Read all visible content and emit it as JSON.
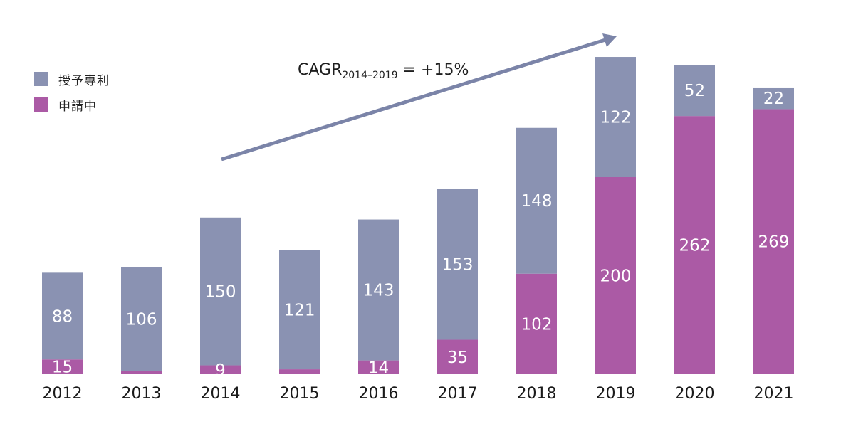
{
  "chart_data": {
    "type": "bar",
    "stacked": true,
    "categories": [
      "2012",
      "2013",
      "2014",
      "2015",
      "2016",
      "2017",
      "2018",
      "2019",
      "2020",
      "2021"
    ],
    "series": [
      {
        "name": "申請中",
        "color": "#ab5aa5",
        "values": [
          15,
          3,
          9,
          5,
          14,
          35,
          102,
          200,
          262,
          269
        ],
        "labels": [
          "15",
          "",
          "9",
          "",
          "14",
          "35",
          "102",
          "200",
          "262",
          "269"
        ]
      },
      {
        "name": "授予專利",
        "color": "#8a92b2",
        "values": [
          88,
          106,
          150,
          121,
          143,
          153,
          148,
          122,
          52,
          22
        ],
        "labels": [
          "88",
          "106",
          "150",
          "121",
          "143",
          "153",
          "148",
          "122",
          "52",
          "22"
        ]
      }
    ],
    "legend_position": "top-left",
    "grid": false,
    "ylim": [
      0,
      330
    ],
    "annotation": {
      "main": "CAGR",
      "sub": "2014–2019",
      "tail": " = +15%",
      "arrow_color": "#7b84a8"
    }
  }
}
